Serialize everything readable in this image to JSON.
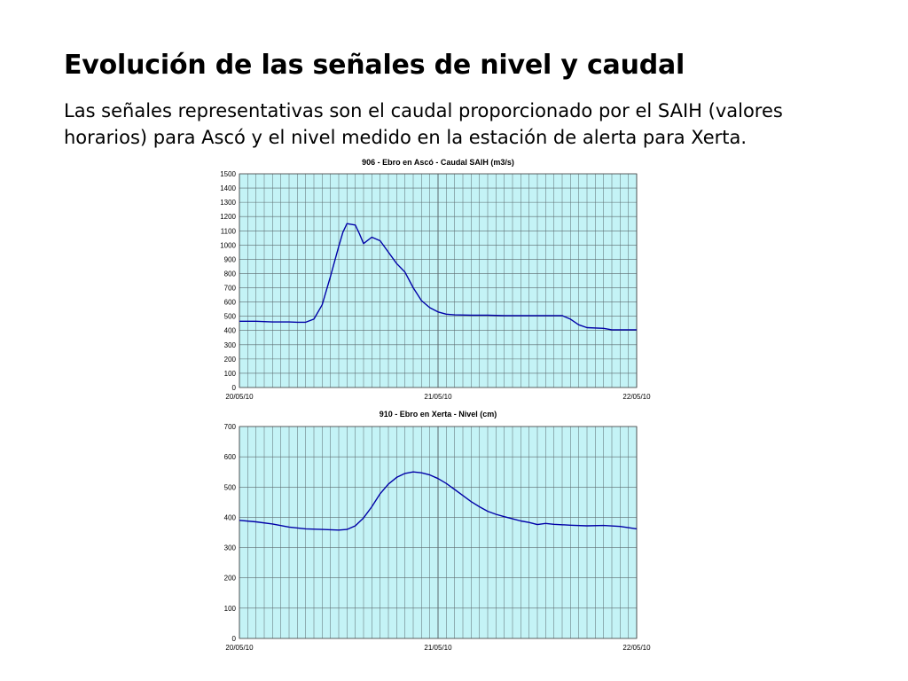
{
  "page": {
    "title": "Evolución de las señales de nivel y caudal",
    "subtitle": "Las señales representativas son el caudal proporcionado por el SAIH (valores horarios) para Ascó y el nivel medido en la estación de alerta para Xerta."
  },
  "colors": {
    "plot_background": "#c4f3f6",
    "grid": "#5a6a6e",
    "series": "#0000a8"
  },
  "chart_data": [
    {
      "type": "line",
      "title": "906 - Ebro en Ascó - Caudal SAIH (m3/s)",
      "xlabel": "",
      "ylabel": "",
      "ylim": [
        0,
        1500
      ],
      "y_ticks": [
        0,
        100,
        200,
        300,
        400,
        500,
        600,
        700,
        800,
        900,
        1000,
        1100,
        1200,
        1300,
        1400,
        1500
      ],
      "xlim": [
        0,
        48
      ],
      "x_ticks": [
        {
          "x": 0,
          "label": "20/05/10"
        },
        {
          "x": 24,
          "label": "21/05/10"
        },
        {
          "x": 48,
          "label": "22/05/10"
        }
      ],
      "grid": true,
      "series": [
        {
          "values": [
            [
              0,
              465
            ],
            [
              2,
              465
            ],
            [
              4,
              460
            ],
            [
              6,
              460
            ],
            [
              7,
              458
            ],
            [
              8,
              458
            ],
            [
              9,
              480
            ],
            [
              10,
              580
            ],
            [
              11,
              780
            ],
            [
              12,
              990
            ],
            [
              12.5,
              1090
            ],
            [
              13,
              1150
            ],
            [
              14,
              1140
            ],
            [
              14.5,
              1080
            ],
            [
              15,
              1010
            ],
            [
              16,
              1055
            ],
            [
              17,
              1030
            ],
            [
              18,
              950
            ],
            [
              19,
              870
            ],
            [
              20,
              810
            ],
            [
              21,
              700
            ],
            [
              22,
              610
            ],
            [
              23,
              560
            ],
            [
              24,
              530
            ],
            [
              25,
              515
            ],
            [
              26,
              510
            ],
            [
              28,
              508
            ],
            [
              30,
              508
            ],
            [
              32,
              505
            ],
            [
              34,
              505
            ],
            [
              36,
              505
            ],
            [
              38,
              505
            ],
            [
              39,
              505
            ],
            [
              40,
              480
            ],
            [
              41,
              440
            ],
            [
              42,
              420
            ],
            [
              44,
              415
            ],
            [
              45,
              405
            ],
            [
              48,
              405
            ]
          ]
        }
      ]
    },
    {
      "type": "line",
      "title": "910 - Ebro en Xerta - Nivel (cm)",
      "xlabel": "",
      "ylabel": "",
      "ylim": [
        0,
        700
      ],
      "y_ticks": [
        0,
        100,
        200,
        300,
        400,
        500,
        600,
        700
      ],
      "xlim": [
        0,
        48
      ],
      "x_ticks": [
        {
          "x": 0,
          "label": "20/05/10"
        },
        {
          "x": 24,
          "label": "21/05/10"
        },
        {
          "x": 48,
          "label": "22/05/10"
        }
      ],
      "grid": true,
      "series": [
        {
          "values": [
            [
              0,
              390
            ],
            [
              2,
              385
            ],
            [
              4,
              378
            ],
            [
              6,
              368
            ],
            [
              8,
              362
            ],
            [
              10,
              360
            ],
            [
              12,
              358
            ],
            [
              13,
              360
            ],
            [
              14,
              372
            ],
            [
              15,
              398
            ],
            [
              16,
              435
            ],
            [
              17,
              478
            ],
            [
              18,
              510
            ],
            [
              19,
              532
            ],
            [
              20,
              545
            ],
            [
              21,
              550
            ],
            [
              22,
              547
            ],
            [
              23,
              540
            ],
            [
              24,
              528
            ],
            [
              25,
              512
            ],
            [
              26,
              492
            ],
            [
              27,
              472
            ],
            [
              28,
              452
            ],
            [
              29,
              435
            ],
            [
              30,
              420
            ],
            [
              31,
              410
            ],
            [
              32,
              402
            ],
            [
              33,
              395
            ],
            [
              34,
              388
            ],
            [
              35,
              383
            ],
            [
              36,
              376
            ],
            [
              37,
              380
            ],
            [
              38,
              377
            ],
            [
              40,
              374
            ],
            [
              42,
              372
            ],
            [
              44,
              373
            ],
            [
              46,
              370
            ],
            [
              48,
              362
            ]
          ]
        }
      ]
    }
  ]
}
